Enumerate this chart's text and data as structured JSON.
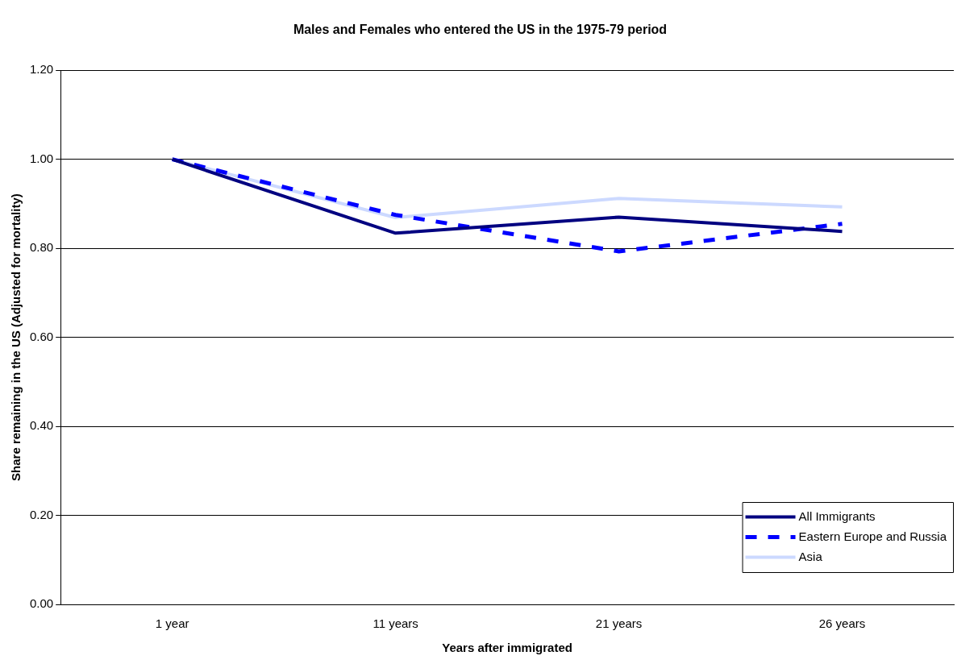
{
  "chart_data": {
    "type": "line",
    "title": "Males and Females who entered the US in the 1975-79 period",
    "xlabel": "Years after immigrated",
    "ylabel": "Share remaining in the US (Adjusted for mortality)",
    "categories": [
      "1 year",
      "11 years",
      "21 years",
      "26 years"
    ],
    "series": [
      {
        "name": "All Immigrants",
        "color": "#000080",
        "line_style": "solid",
        "values": [
          1.0,
          0.834,
          0.87,
          0.838
        ]
      },
      {
        "name": "Eastern Europe and Russia",
        "color": "#0000ff",
        "line_style": "dashed",
        "values": [
          1.0,
          0.875,
          0.793,
          0.855
        ]
      },
      {
        "name": "Asia",
        "color": "#ccd9ff",
        "line_style": "solid",
        "values": [
          1.0,
          0.869,
          0.912,
          0.893
        ]
      }
    ],
    "ylim": [
      0,
      1.2
    ],
    "yticks": [
      {
        "value": 0,
        "label": "0.00"
      },
      {
        "value": 0.2,
        "label": "0.20"
      },
      {
        "value": 0.4,
        "label": "0.40"
      },
      {
        "value": 0.6,
        "label": "0.60"
      },
      {
        "value": 0.8,
        "label": "0.80"
      },
      {
        "value": 1.0,
        "label": "1.00"
      },
      {
        "value": 1.2,
        "label": "1.20"
      }
    ],
    "grid": "y",
    "legend": "bottom right",
    "marker": "none"
  }
}
